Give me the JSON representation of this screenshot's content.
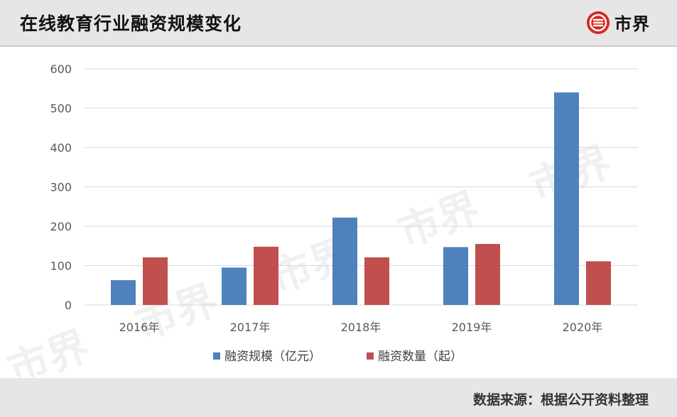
{
  "header": {
    "title": "在线教育行业融资规模变化",
    "brand_name": "市界"
  },
  "footer": {
    "source": "数据来源：根据公开资料整理"
  },
  "watermark": "市界",
  "colors": {
    "series_1": "#4f81bd",
    "series_2": "#c0504d",
    "brand_red": "#d7261f",
    "grid": "#d9d9d9"
  },
  "chart_data": {
    "type": "bar",
    "categories": [
      "2016年",
      "2017年",
      "2018年",
      "2019年",
      "2020年"
    ],
    "series": [
      {
        "name": "融资规模（亿元）",
        "values": [
          63,
          95,
          222,
          147,
          540
        ]
      },
      {
        "name": "融资数量（起）",
        "values": [
          121,
          148,
          121,
          155,
          111
        ]
      }
    ],
    "ylim": [
      0,
      600
    ],
    "yticks": [
      0,
      100,
      200,
      300,
      400,
      500,
      600
    ],
    "grid": true,
    "legend_position": "bottom"
  }
}
